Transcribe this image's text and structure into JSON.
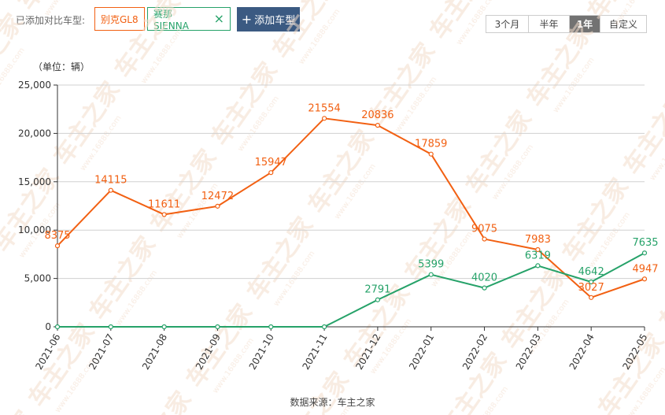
{
  "header": {
    "added_label": "已添加对比车型:",
    "tags": [
      {
        "label": "别克GL8",
        "color": "#f26012"
      },
      {
        "label": "赛那SIENNA",
        "color": "#26a269",
        "close": "×"
      }
    ],
    "add_button_label": "添加车型",
    "add_icon": "plus-icon",
    "close_icon": "close-icon",
    "ranges": [
      {
        "label": "3个月",
        "active": false
      },
      {
        "label": "半年",
        "active": false
      },
      {
        "label": "1年",
        "active": true
      },
      {
        "label": "自定义",
        "active": false
      }
    ]
  },
  "chart": {
    "unit_label": "（单位：辆）",
    "source": "数据来源：车主之家"
  },
  "colors": {
    "buick": "#f26012",
    "sienna": "#26a269",
    "grid": "#d0d0d0",
    "active_range": "#727272",
    "add_button": "#3b5a82"
  },
  "chart_data": {
    "type": "line",
    "title": "",
    "xlabel": "",
    "ylabel": "（单位：辆）",
    "categories": [
      "2021-06",
      "2021-07",
      "2021-08",
      "2021-09",
      "2021-10",
      "2021-11",
      "2021-12",
      "2022-01",
      "2022-02",
      "2022-03",
      "2022-04",
      "2022-05"
    ],
    "ylim": [
      0,
      25000
    ],
    "yticks": [
      0,
      5000,
      10000,
      15000,
      20000,
      25000
    ],
    "ytick_labels": [
      "0",
      "5,000",
      "10,000",
      "15,000",
      "20,000",
      "25,000"
    ],
    "grid": "horizontal",
    "series": [
      {
        "name": "别克GL8",
        "color": "#f26012",
        "values": [
          8375,
          14115,
          11611,
          12472,
          15947,
          21554,
          20836,
          17859,
          9075,
          7983,
          3027,
          4947
        ],
        "labels": [
          "8375",
          "14115",
          "11611",
          "12472",
          "15947",
          "21554",
          "20836",
          "17859",
          "9075",
          "7983",
          "3027",
          "4947"
        ]
      },
      {
        "name": "赛那SIENNA",
        "color": "#26a269",
        "values": [
          0,
          0,
          0,
          0,
          0,
          0,
          2791,
          5399,
          4020,
          6319,
          4642,
          7635
        ],
        "labels": [
          "",
          "",
          "",
          "",
          "",
          "",
          "2791",
          "5399",
          "4020",
          "6319",
          "4642",
          "7635"
        ]
      }
    ]
  }
}
